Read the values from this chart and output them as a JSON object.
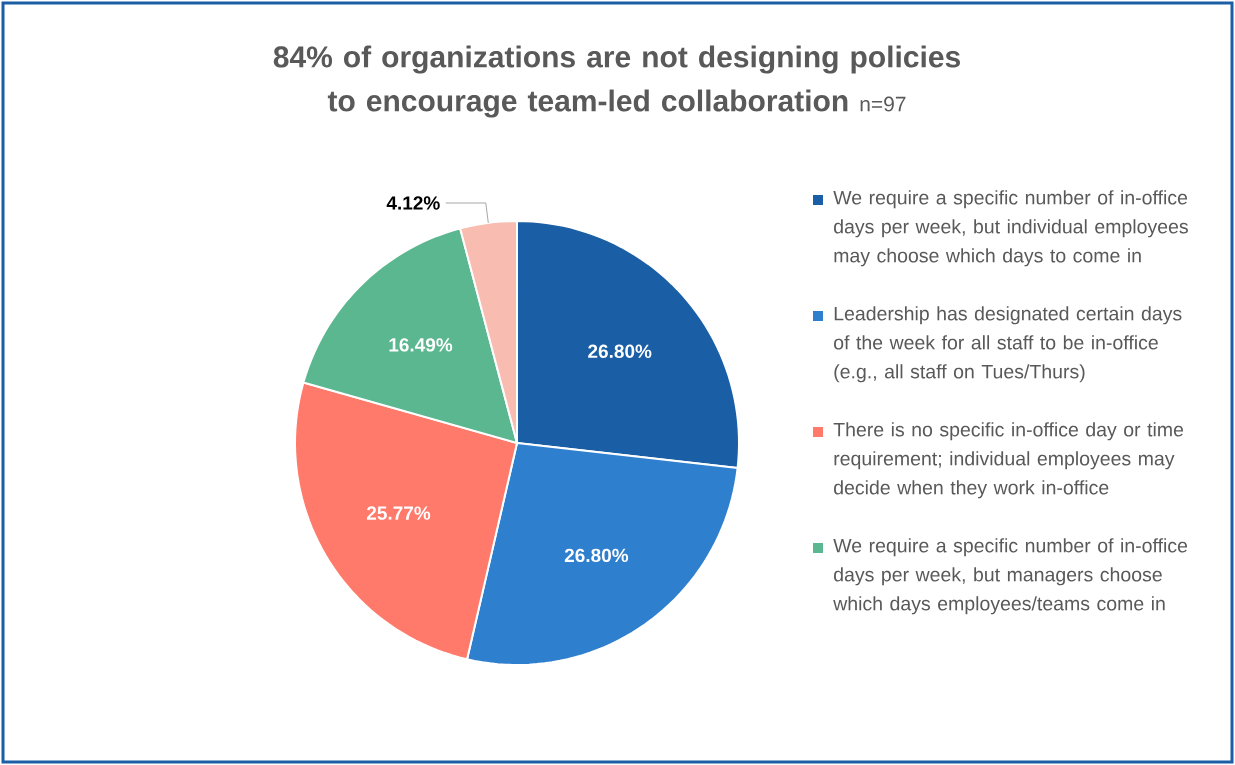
{
  "chart_data": {
    "type": "pie",
    "title": "84% of organizations are not designing policies to encourage team-led collaboration",
    "subtitle": "n=97",
    "categories": [
      "We require a specific number of in-office days per week, but individual employees may choose which days to come in",
      "Leadership has designated certain days of the week for all staff to be in-office (e.g., all staff on Tues/Thurs)",
      "There is no specific in-office day or time requirement; individual employees may decide when they work in-office",
      "We require a specific number of in-office days per week, but managers choose which days employees/teams come in",
      null
    ],
    "values": [
      26.8,
      26.8,
      25.77,
      16.49,
      4.12
    ],
    "value_labels": [
      "26.80%",
      "26.80%",
      "25.77%",
      "16.49%",
      "4.12%"
    ],
    "colors": [
      "#1a5fa6",
      "#2f7fcf",
      "#ff7a6b",
      "#5bb78f",
      "#f8bcb0"
    ],
    "legend": "right"
  }
}
